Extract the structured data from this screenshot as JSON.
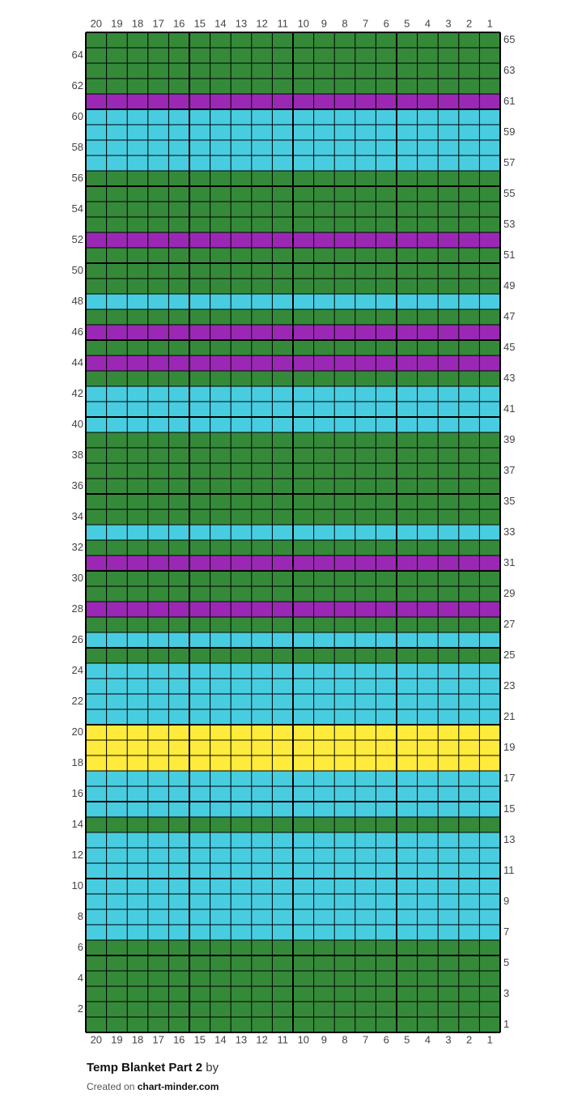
{
  "chart": {
    "columns": [
      20,
      19,
      18,
      17,
      16,
      15,
      14,
      13,
      12,
      11,
      10,
      9,
      8,
      7,
      6,
      5,
      4,
      3,
      2,
      1
    ],
    "palette": {
      "G": "#358a3a",
      "B": "#48cde0",
      "P": "#9b28b4",
      "Y": "#ffeb3b"
    },
    "rows": [
      {
        "number": 65,
        "color": "G"
      },
      {
        "number": 64,
        "color": "G"
      },
      {
        "number": 63,
        "color": "G"
      },
      {
        "number": 62,
        "color": "G"
      },
      {
        "number": 61,
        "color": "P"
      },
      {
        "number": 60,
        "color": "B"
      },
      {
        "number": 59,
        "color": "B"
      },
      {
        "number": 58,
        "color": "B"
      },
      {
        "number": 57,
        "color": "B"
      },
      {
        "number": 56,
        "color": "G"
      },
      {
        "number": 55,
        "color": "G"
      },
      {
        "number": 54,
        "color": "G"
      },
      {
        "number": 53,
        "color": "G"
      },
      {
        "number": 52,
        "color": "P"
      },
      {
        "number": 51,
        "color": "G"
      },
      {
        "number": 50,
        "color": "G"
      },
      {
        "number": 49,
        "color": "G"
      },
      {
        "number": 48,
        "color": "B"
      },
      {
        "number": 47,
        "color": "G"
      },
      {
        "number": 46,
        "color": "P"
      },
      {
        "number": 45,
        "color": "G"
      },
      {
        "number": 44,
        "color": "P"
      },
      {
        "number": 43,
        "color": "G"
      },
      {
        "number": 42,
        "color": "B"
      },
      {
        "number": 41,
        "color": "B"
      },
      {
        "number": 40,
        "color": "B"
      },
      {
        "number": 39,
        "color": "G"
      },
      {
        "number": 38,
        "color": "G"
      },
      {
        "number": 37,
        "color": "G"
      },
      {
        "number": 36,
        "color": "G"
      },
      {
        "number": 35,
        "color": "G"
      },
      {
        "number": 34,
        "color": "G"
      },
      {
        "number": 33,
        "color": "B"
      },
      {
        "number": 32,
        "color": "G"
      },
      {
        "number": 31,
        "color": "P"
      },
      {
        "number": 30,
        "color": "G"
      },
      {
        "number": 29,
        "color": "G"
      },
      {
        "number": 28,
        "color": "P"
      },
      {
        "number": 27,
        "color": "G"
      },
      {
        "number": 26,
        "color": "B"
      },
      {
        "number": 25,
        "color": "G"
      },
      {
        "number": 24,
        "color": "B"
      },
      {
        "number": 23,
        "color": "B"
      },
      {
        "number": 22,
        "color": "B"
      },
      {
        "number": 21,
        "color": "B"
      },
      {
        "number": 20,
        "color": "Y"
      },
      {
        "number": 19,
        "color": "Y"
      },
      {
        "number": 18,
        "color": "Y"
      },
      {
        "number": 17,
        "color": "B"
      },
      {
        "number": 16,
        "color": "B"
      },
      {
        "number": 15,
        "color": "B"
      },
      {
        "number": 14,
        "color": "G"
      },
      {
        "number": 13,
        "color": "B"
      },
      {
        "number": 12,
        "color": "B"
      },
      {
        "number": 11,
        "color": "B"
      },
      {
        "number": 10,
        "color": "B"
      },
      {
        "number": 9,
        "color": "B"
      },
      {
        "number": 8,
        "color": "B"
      },
      {
        "number": 7,
        "color": "B"
      },
      {
        "number": 6,
        "color": "G"
      },
      {
        "number": 5,
        "color": "G"
      },
      {
        "number": 4,
        "color": "G"
      },
      {
        "number": 3,
        "color": "G"
      },
      {
        "number": 2,
        "color": "G"
      },
      {
        "number": 1,
        "color": "G"
      }
    ]
  },
  "footer": {
    "title": "Temp Blanket Part 2",
    "by": "by",
    "created": "Created on",
    "site": "chart-minder.com"
  }
}
